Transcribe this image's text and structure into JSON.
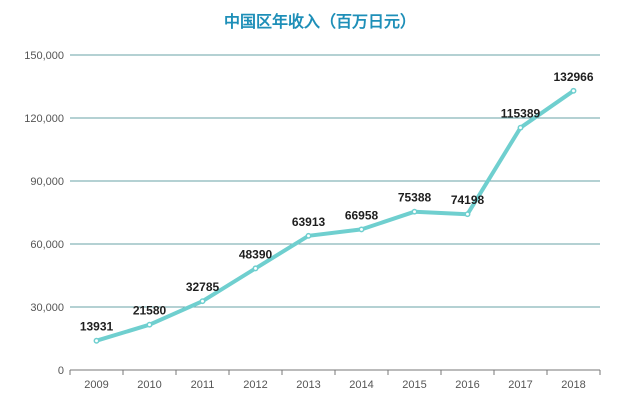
{
  "chart_data": {
    "type": "line",
    "title": "中国区年收入（百万日元）",
    "categories": [
      "2009",
      "2010",
      "2011",
      "2012",
      "2013",
      "2014",
      "2015",
      "2016",
      "2017",
      "2018"
    ],
    "series": [
      {
        "values": [
          13931,
          21580,
          32785,
          48390,
          63913,
          66958,
          75388,
          74198,
          115389,
          132966
        ]
      }
    ],
    "data_labels": [
      "13931",
      "21580",
      "32785",
      "48390",
      "63913",
      "66958",
      "75388",
      "74198",
      "115389",
      "132966"
    ],
    "yticks": [
      0,
      30000,
      60000,
      90000,
      120000,
      150000
    ],
    "ytick_labels": [
      "0",
      "30,000",
      "60,000",
      "90,000",
      "120,000",
      "150,000"
    ],
    "ylim": [
      0,
      150000
    ],
    "grid": true,
    "legend": "none",
    "colors": {
      "line": "#6fcfcf",
      "title": "#1e8fb8",
      "grid": "#6aa3a7"
    }
  }
}
